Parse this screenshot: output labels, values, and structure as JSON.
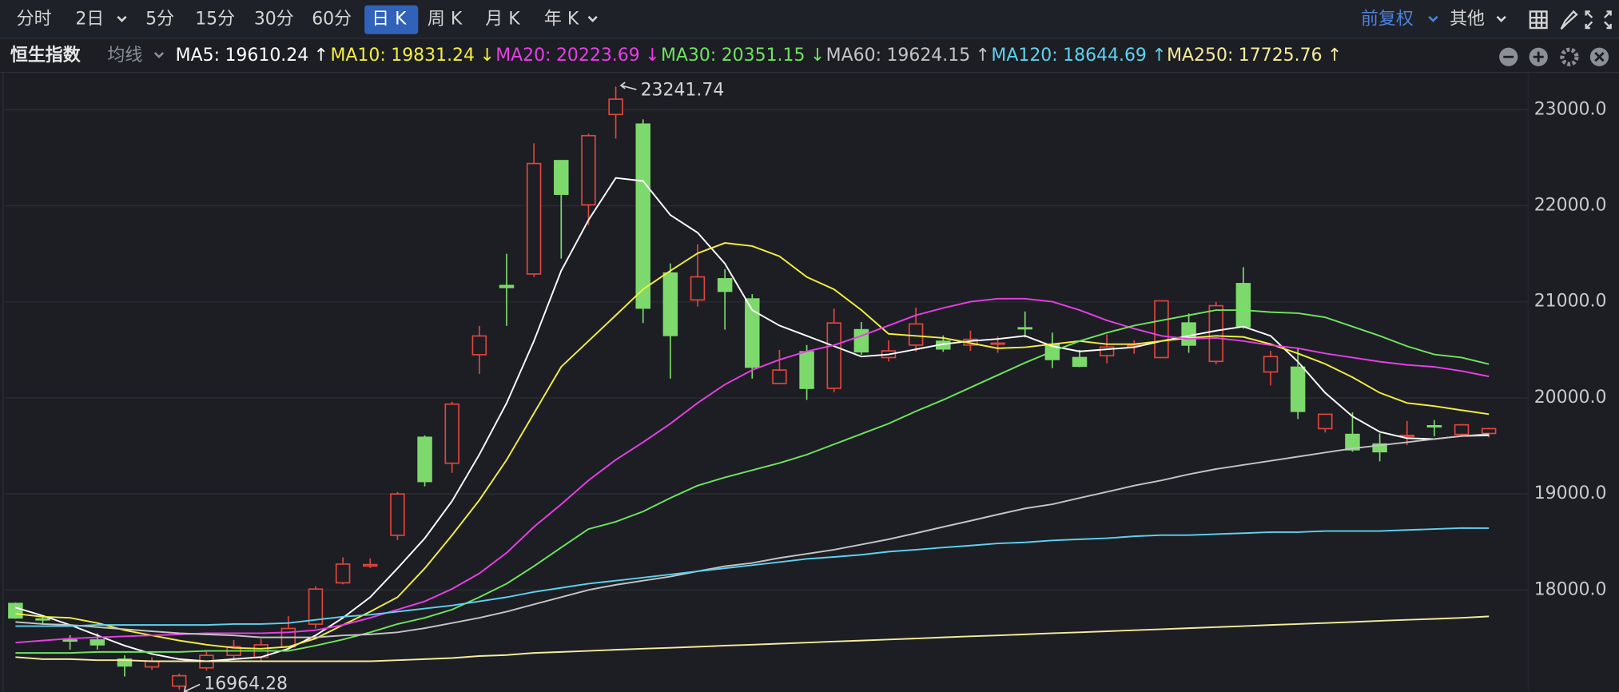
{
  "toolbar": {
    "tabs": [
      "分时",
      "2日",
      "5分",
      "15分",
      "30分",
      "60分",
      "日 K",
      "周 K",
      "月 K",
      "年 K"
    ],
    "active_tab": 6,
    "adjust": "前复权",
    "more": "其他"
  },
  "chart_data": {
    "type": "candlestick",
    "title": "恒生指数",
    "indicator": "均线",
    "separator": ":",
    "up_color": "#e0463c",
    "down_color": "#7ed96c",
    "open": [
      17860,
      17700,
      17480,
      17480,
      17280,
      17200,
      17000,
      17190,
      17320,
      17300,
      17410,
      17645,
      18075,
      18250,
      18570,
      19590,
      19320,
      20450,
      21170,
      21290,
      22470,
      22010,
      22950,
      22850,
      21300,
      21020,
      21240,
      21030,
      20150,
      20480,
      20100,
      20710,
      20420,
      20550,
      20590,
      20550,
      20560,
      20730,
      20560,
      20420,
      20440,
      20540,
      20420,
      20780,
      20380,
      21190,
      20270,
      20320,
      19680,
      19620,
      19520,
      19600,
      19710,
      19620,
      19630
    ],
    "high": [
      17870,
      17730,
      17530,
      17550,
      17320,
      17300,
      17130,
      17360,
      17480,
      17490,
      17730,
      18040,
      18340,
      18330,
      19020,
      19610,
      19960,
      20750,
      21500,
      22650,
      22470,
      22750,
      23241.74,
      22900,
      21400,
      21600,
      21340,
      21080,
      20500,
      20550,
      20930,
      20790,
      20600,
      20940,
      20650,
      20700,
      20640,
      20900,
      20680,
      20500,
      20660,
      20600,
      21010,
      20880,
      21000,
      21360,
      20490,
      20520,
      19830,
      19850,
      19630,
      19760,
      19770,
      19730,
      19690
    ],
    "low": [
      17700,
      17650,
      17380,
      17380,
      17100,
      17170,
      16964.28,
      17160,
      17280,
      17250,
      17380,
      17600,
      18060,
      18230,
      18520,
      19080,
      19220,
      20250,
      20750,
      21260,
      21450,
      21800,
      22700,
      20780,
      20200,
      20950,
      20710,
      20200,
      20150,
      19980,
      20060,
      20450,
      20380,
      20480,
      20480,
      20490,
      20470,
      20630,
      20310,
      20320,
      20360,
      20460,
      20420,
      20470,
      20350,
      20720,
      20130,
      19780,
      19640,
      19440,
      19340,
      19510,
      19600,
      19600,
      19590
    ],
    "close": [
      17710,
      17690,
      17470,
      17430,
      17210,
      17260,
      17108,
      17320,
      17410,
      17430,
      17600,
      18010,
      18270,
      18265,
      19000,
      19130,
      19935,
      20645,
      21150,
      22440,
      22120,
      22730,
      23110,
      20935,
      20650,
      21260,
      21110,
      20320,
      20290,
      20100,
      20780,
      20480,
      20490,
      20770,
      20510,
      20610,
      20570,
      20720,
      20400,
      20330,
      20530,
      20550,
      21010,
      20550,
      20960,
      20740,
      20430,
      19860,
      19830,
      19460,
      19440,
      19610,
      19700,
      19720,
      19680
    ],
    "series": [
      {
        "name": "MA5",
        "color": "#ffffff",
        "trend": "↑",
        "values": [
          17818,
          17733,
          17636,
          17528,
          17421,
          17335,
          17281,
          17259,
          17281,
          17302,
          17389,
          17528,
          17711,
          17926,
          18227,
          18539,
          18926,
          19410,
          19947,
          20592,
          21323,
          21850,
          22290,
          22258,
          21904,
          21721,
          21398,
          20914,
          20753,
          20646,
          20538,
          20431,
          20452,
          20506,
          20560,
          20592,
          20613,
          20646,
          20538,
          20485,
          20506,
          20527,
          20592,
          20646,
          20699,
          20742,
          20646,
          20377,
          20054,
          19807,
          19646,
          19581,
          19572,
          19603,
          19610.24
        ]
      },
      {
        "name": "MA10",
        "color": "#f5ee3c",
        "trend": "↓",
        "values": [
          17754,
          17722,
          17711,
          17657,
          17582,
          17528,
          17474,
          17431,
          17399,
          17389,
          17410,
          17496,
          17636,
          17775,
          17926,
          18227,
          18571,
          18936,
          19356,
          19840,
          20323,
          20592,
          20861,
          21130,
          21323,
          21506,
          21613,
          21581,
          21474,
          21258,
          21130,
          20914,
          20667,
          20646,
          20624,
          20570,
          20517,
          20527,
          20560,
          20592,
          20560,
          20560,
          20592,
          20624,
          20646,
          20635,
          20560,
          20463,
          20355,
          20215,
          20054,
          19947,
          19915,
          19872,
          19831.24
        ]
      },
      {
        "name": "MA20",
        "color": "#e83ee6",
        "trend": "↓",
        "values": [
          17453,
          17474,
          17496,
          17507,
          17518,
          17528,
          17539,
          17550,
          17550,
          17550,
          17560,
          17582,
          17636,
          17711,
          17797,
          17883,
          18012,
          18173,
          18388,
          18657,
          18893,
          19141,
          19356,
          19539,
          19732,
          19947,
          20140,
          20290,
          20398,
          20485,
          20549,
          20646,
          20753,
          20861,
          20936,
          21001,
          21033,
          21033,
          21001,
          20914,
          20807,
          20721,
          20646,
          20613,
          20624,
          20592,
          20549,
          20517,
          20463,
          20420,
          20377,
          20344,
          20323,
          20280,
          20223.69
        ]
      },
      {
        "name": "MA30",
        "color": "#6fe45e",
        "trend": "↓",
        "values": [
          17345,
          17345,
          17345,
          17356,
          17356,
          17356,
          17356,
          17367,
          17367,
          17367,
          17367,
          17421,
          17485,
          17560,
          17646,
          17711,
          17797,
          17926,
          18066,
          18248,
          18442,
          18635,
          18711,
          18818,
          18958,
          19087,
          19172,
          19247,
          19323,
          19410,
          19517,
          19625,
          19732,
          19861,
          19979,
          20108,
          20237,
          20366,
          20485,
          20592,
          20678,
          20753,
          20807,
          20861,
          20914,
          20914,
          20893,
          20882,
          20839,
          20742,
          20646,
          20538,
          20452,
          20420,
          20351.15
        ]
      },
      {
        "name": "MA60",
        "color": "#c4c4c4",
        "trend": "↑",
        "values": [
          17668,
          17646,
          17636,
          17614,
          17592,
          17571,
          17550,
          17539,
          17528,
          17507,
          17507,
          17507,
          17528,
          17539,
          17560,
          17603,
          17657,
          17711,
          17775,
          17851,
          17926,
          18001,
          18055,
          18098,
          18141,
          18195,
          18248,
          18281,
          18334,
          18377,
          18420,
          18474,
          18528,
          18592,
          18657,
          18721,
          18786,
          18850,
          18893,
          18958,
          19022,
          19087,
          19141,
          19205,
          19259,
          19302,
          19345,
          19388,
          19431,
          19474,
          19507,
          19539,
          19572,
          19603,
          19624.15
        ]
      },
      {
        "name": "MA120",
        "color": "#5ed2ef",
        "trend": "↑",
        "values": [
          17625,
          17625,
          17625,
          17636,
          17636,
          17636,
          17636,
          17636,
          17646,
          17646,
          17657,
          17690,
          17722,
          17743,
          17775,
          17807,
          17840,
          17883,
          17926,
          17980,
          18023,
          18066,
          18098,
          18130,
          18162,
          18195,
          18227,
          18259,
          18291,
          18324,
          18345,
          18367,
          18399,
          18420,
          18442,
          18463,
          18485,
          18496,
          18517,
          18528,
          18539,
          18560,
          18571,
          18571,
          18582,
          18592,
          18603,
          18603,
          18614,
          18614,
          18614,
          18625,
          18635,
          18646,
          18644.69
        ]
      },
      {
        "name": "MA250",
        "color": "#f6ec9c",
        "trend": "↑",
        "values": [
          17302,
          17281,
          17281,
          17270,
          17270,
          17259,
          17259,
          17259,
          17259,
          17259,
          17259,
          17259,
          17259,
          17259,
          17270,
          17281,
          17292,
          17313,
          17324,
          17345,
          17356,
          17367,
          17378,
          17389,
          17399,
          17410,
          17421,
          17431,
          17442,
          17453,
          17464,
          17474,
          17485,
          17496,
          17507,
          17518,
          17528,
          17539,
          17550,
          17560,
          17571,
          17582,
          17592,
          17603,
          17614,
          17625,
          17636,
          17646,
          17657,
          17668,
          17679,
          17690,
          17700,
          17711,
          17725.76
        ]
      }
    ],
    "ylim": [
      16940,
      23410
    ],
    "yticks": [
      {
        "value": 18000,
        "label": "18000.0"
      },
      {
        "value": 19000,
        "label": "19000.0"
      },
      {
        "value": 20000,
        "label": "20000.0"
      },
      {
        "value": 21000,
        "label": "21000.0"
      },
      {
        "value": 22000,
        "label": "22000.0"
      },
      {
        "value": 23000,
        "label": "23000.0"
      }
    ],
    "grid": true
  }
}
